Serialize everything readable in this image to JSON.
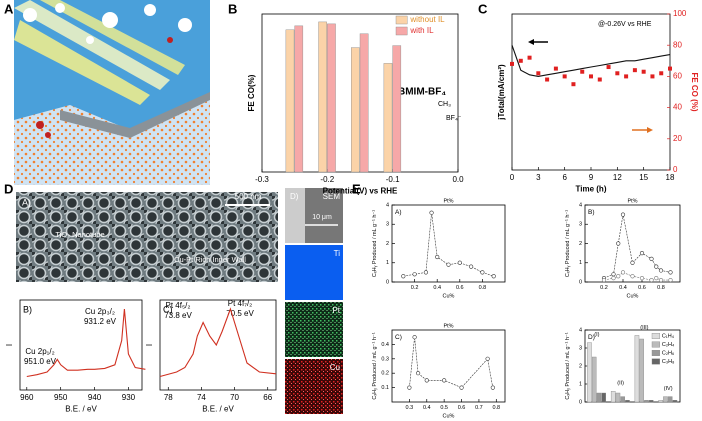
{
  "panel_labels": [
    "A",
    "B",
    "C",
    "D",
    "E"
  ],
  "sem": {
    "label": "A)",
    "scale": "500 nm",
    "wall": "Cu-Pt Rich Inner Wall",
    "tube": "TiO₂ Nanotube"
  },
  "eds": {
    "label": "D)",
    "sem": "SEM",
    "scale": "10 μm",
    "ti": "Ti",
    "pt": "Pt",
    "cu": "Cu"
  },
  "chart_data": [
    {
      "type": "bar",
      "xlabel": "Potential(V) vs RHE",
      "ylabel": "FE CO(%)",
      "x": [
        -0.25,
        -0.2,
        -0.15,
        -0.1
      ],
      "xlim": [
        -0.3,
        0.0
      ],
      "xticks": [
        -0.3,
        -0.2,
        -0.1,
        {
          "value": 0,
          "label": "0.0"
        }
      ],
      "ylim": [
        0,
        80
      ],
      "legend": "upper right",
      "series": [
        {
          "name": "without IL",
          "color": "#fbd3a8",
          "values": [
            72,
            76,
            63,
            55
          ]
        },
        {
          "name": "with IL",
          "color": "#f6a8a8",
          "values": [
            74,
            75,
            70,
            64
          ]
        }
      ],
      "annotations": [
        "BMIM-BF₄",
        "CH₃",
        "BF₄⁻"
      ]
    },
    {
      "type": "line",
      "xlabel": "Time (h)",
      "ylabel": "jTotal(mA/cm²)",
      "y2label": "FE CO (%)",
      "y2color": "#e02020",
      "x": [
        0,
        1,
        2,
        3,
        4,
        5,
        6,
        7,
        8,
        9,
        10,
        11,
        12,
        13,
        14,
        15,
        16,
        17,
        18
      ],
      "xlim": [
        0,
        18
      ],
      "xticks": [
        0,
        3,
        6,
        9,
        12,
        15,
        18
      ],
      "ylim": [
        0,
        10
      ],
      "y2lim": [
        0,
        100
      ],
      "y2ticks": [
        0,
        20,
        40,
        60,
        80,
        100
      ],
      "series": [
        {
          "color": "#111111",
          "style": "line",
          "values": [
            8.0,
            6.4,
            6.1,
            6.0,
            6.1,
            6.2,
            6.3,
            6.4,
            6.5,
            6.6,
            6.7,
            6.8,
            6.9,
            7.0,
            7.0,
            7.1,
            7.2,
            7.3,
            7.4
          ]
        },
        {
          "color": "#e02020",
          "style": "points",
          "axis": "y2",
          "values": [
            68,
            70,
            72,
            62,
            58,
            65,
            60,
            55,
            63,
            60,
            58,
            66,
            62,
            60,
            64,
            63,
            60,
            62,
            65
          ]
        }
      ],
      "annotations": [
        "@-0.26V vs RHE"
      ]
    },
    {
      "type": "line",
      "label": "B)",
      "xlabel": "B.E. / eV",
      "ylabel": "I",
      "xlim": [
        962,
        926
      ],
      "xticks": [
        960,
        950,
        940,
        930
      ],
      "ylim": [
        0,
        10
      ],
      "x": [
        960,
        957,
        954,
        952,
        951,
        950,
        948,
        945,
        942,
        940,
        937,
        934,
        932,
        931.2,
        930,
        928,
        925
      ],
      "series": [
        {
          "color": "#d03020",
          "style": "line",
          "values": [
            1.5,
            1.7,
            2.0,
            2.8,
            3.4,
            2.8,
            2.2,
            2.2,
            2.3,
            2.3,
            2.4,
            2.8,
            5.5,
            9.0,
            4.0,
            2.5,
            2.3
          ]
        }
      ],
      "annotations": [
        "Cu 2p₁/₂",
        "951.0 eV",
        "Cu 2p₃/₂",
        "931.2 eV"
      ]
    },
    {
      "type": "line",
      "label": "C)",
      "xlabel": "B.E. / eV",
      "ylabel": "I",
      "xlim": [
        79,
        65
      ],
      "xticks": [
        78,
        74,
        70,
        66
      ],
      "ylim": [
        0,
        10
      ],
      "x": [
        79,
        77,
        76,
        75,
        74.5,
        73.8,
        73,
        72.2,
        71.5,
        70.5,
        69.5,
        68.5,
        67,
        65
      ],
      "series": [
        {
          "color": "#d03020",
          "style": "line",
          "values": [
            1.5,
            2,
            2.5,
            4,
            6,
            7.5,
            6,
            5,
            6.5,
            9,
            6,
            3,
            2,
            1.8
          ]
        }
      ],
      "annotations": [
        "Pt 4f₅/₂",
        "73.8 eV",
        "Pt 4f₇/₂",
        "70.5 eV"
      ]
    },
    {
      "type": "line",
      "label": "A)",
      "xlabel": "Cu%",
      "toplabel": "Pt%",
      "ylabel": "CₓHᵧ Produced / mL g⁻¹ h⁻¹",
      "xlim": [
        0,
        1
      ],
      "xticks": [
        0.2,
        0.4,
        0.6,
        0.8
      ],
      "ylim": [
        0,
        4
      ],
      "yticks": [
        0,
        1,
        2,
        3,
        4
      ],
      "x": [
        0.1,
        0.2,
        0.3,
        0.35,
        0.4,
        0.5,
        0.6,
        0.7,
        0.8,
        0.9
      ],
      "series": [
        {
          "color": "#333333",
          "style": "markers",
          "values": [
            0.3,
            0.4,
            0.5,
            3.6,
            1.3,
            0.9,
            1.0,
            0.8,
            0.5,
            0.3
          ]
        }
      ]
    },
    {
      "type": "line",
      "label": "B)",
      "xlabel": "Cu%",
      "toplabel": "Pt%",
      "ylabel": "CₓHᵧ Produced / mL g⁻¹ h⁻¹",
      "xlim": [
        0,
        1
      ],
      "xticks": [
        0.2,
        0.4,
        0.6,
        0.8
      ],
      "ylim": [
        0,
        4
      ],
      "yticks": [
        0,
        1,
        2,
        3,
        4
      ],
      "x": [
        0.2,
        0.3,
        0.35,
        0.4,
        0.5,
        0.6,
        0.7,
        0.75,
        0.8,
        0.9
      ],
      "series": [
        {
          "color": "#333333",
          "style": "markers",
          "values": [
            0.2,
            0.4,
            2.0,
            3.5,
            1.0,
            1.5,
            1.2,
            0.8,
            0.6,
            0.5
          ]
        },
        {
          "color": "#777777",
          "style": "markers",
          "values": [
            0.1,
            0.2,
            0.3,
            0.5,
            0.3,
            0.2,
            0.1,
            0.2,
            0.1,
            0.1
          ]
        }
      ]
    },
    {
      "type": "line",
      "label": "C)",
      "xlabel": "Cu%",
      "toplabel": "Pt%",
      "ylabel": "CₓHᵧ Produced / mL g⁻¹ h⁻¹",
      "xlim": [
        0.2,
        0.85
      ],
      "xticks": [
        0.3,
        0.4,
        0.5,
        0.6,
        0.7,
        0.8
      ],
      "ylim": [
        0,
        0.5
      ],
      "yticks": [
        0.1,
        0.2,
        0.3,
        0.4
      ],
      "x": [
        0.3,
        0.33,
        0.35,
        0.4,
        0.5,
        0.6,
        0.75,
        0.78
      ],
      "series": [
        {
          "color": "#333333",
          "style": "markers",
          "values": [
            0.1,
            0.45,
            0.2,
            0.15,
            0.15,
            0.1,
            0.3,
            0.1
          ]
        }
      ]
    },
    {
      "type": "bar",
      "label": "D)",
      "ylabel": "CₓHᵧ Produced / mL g⁻¹ h⁻¹",
      "categories": [
        "(I)",
        "(II)",
        "(III)",
        "(IV)"
      ],
      "ylim": [
        0,
        4
      ],
      "yticks": [
        0,
        1,
        2,
        3,
        4
      ],
      "legend": "upper right",
      "series": [
        {
          "name": "C₁H₄",
          "color": "#dddddd",
          "values": [
            3.3,
            0.6,
            3.7,
            0.1
          ]
        },
        {
          "name": "C₂H₄",
          "color": "#bbbbbb",
          "values": [
            2.5,
            0.5,
            3.5,
            0.3
          ]
        },
        {
          "name": "C₂H₆",
          "color": "#999999",
          "values": [
            0.5,
            0.3,
            0.1,
            0.3
          ]
        },
        {
          "name": "C₃H₈",
          "color": "#666666",
          "values": [
            0.5,
            0.1,
            0.1,
            0.1
          ]
        }
      ]
    }
  ]
}
